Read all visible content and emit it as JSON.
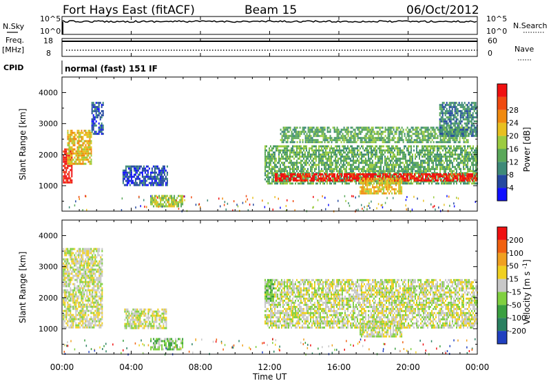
{
  "header": {
    "station": "Fort Hays East (fitACF)",
    "beam": "Beam 15",
    "date": "06/Oct/2012"
  },
  "noise_panel": {
    "left_label": "N.Sky",
    "right_label": "N.Search",
    "left_ticks": [
      "10^5",
      "10^0"
    ],
    "right_ticks": [
      "10^5",
      "10^0"
    ]
  },
  "freq_panel": {
    "left_label_1": "Freq.",
    "left_label_2": "[MHz]",
    "right_label": "Nave",
    "left_ticks": [
      "18",
      "8"
    ],
    "right_ticks": [
      "60",
      "0"
    ],
    "freq_value": 17,
    "nave_value": 11
  },
  "cpid_panel": {
    "label": "CPID",
    "text": "normal (fast) 151 IF"
  },
  "chart_data": [
    {
      "type": "heatmap",
      "quantity": "power",
      "ylabel": "Slant Range [km]",
      "ylim": [
        180,
        4500
      ],
      "yticks": [
        1000,
        2000,
        3000,
        4000
      ],
      "xlabel": "Time UT",
      "xlim": [
        0,
        24
      ],
      "xticks": [
        0,
        4,
        8,
        12,
        16,
        20,
        24
      ],
      "xtick_labels": [
        "00:00",
        "04:00",
        "08:00",
        "12:00",
        "16:00",
        "20:00",
        "00:00"
      ],
      "colorbar": {
        "label": "Power [dB]",
        "ticks": [
          4,
          8,
          12,
          16,
          20,
          24,
          28
        ],
        "colors": [
          "#1010ff",
          "#2448a0",
          "#3e8a78",
          "#5aa85a",
          "#9ccc40",
          "#e8c020",
          "#f08a10",
          "#f04a10",
          "#f01010"
        ]
      },
      "regions": [
        {
          "t0": 0.05,
          "t1": 0.6,
          "r0": 1100,
          "r1": 2200,
          "level": 8
        },
        {
          "t0": 0.3,
          "t1": 1.7,
          "r0": 1700,
          "r1": 2800,
          "level": 5
        },
        {
          "t0": 1.7,
          "t1": 2.4,
          "r0": 2700,
          "r1": 3700,
          "level": 1
        },
        {
          "t0": 3.5,
          "t1": 6.1,
          "r0": 1050,
          "r1": 1650,
          "level": 1
        },
        {
          "t0": 5.1,
          "t1": 7.0,
          "r0": 350,
          "r1": 700,
          "level": 4
        },
        {
          "t0": 11.7,
          "t1": 24,
          "r0": 1100,
          "r1": 2300,
          "level": 3
        },
        {
          "t0": 12.3,
          "t1": 24,
          "r0": 1150,
          "r1": 1400,
          "level": 8
        },
        {
          "t0": 12.6,
          "t1": 23.5,
          "r0": 2400,
          "r1": 2900,
          "level": 3
        },
        {
          "t0": 17.2,
          "t1": 19.6,
          "r0": 750,
          "r1": 1250,
          "level": 5
        },
        {
          "t0": 21.8,
          "t1": 24,
          "r0": 2600,
          "r1": 3700,
          "level": 2
        }
      ]
    },
    {
      "type": "heatmap",
      "quantity": "velocity",
      "ylabel": "Slant Range [km]",
      "ylim": [
        180,
        4500
      ],
      "yticks": [
        1000,
        2000,
        3000,
        4000
      ],
      "xlabel": "Time UT",
      "xlim": [
        0,
        24
      ],
      "xticks": [
        0,
        4,
        8,
        12,
        16,
        20,
        24
      ],
      "xtick_labels": [
        "00:00",
        "04:00",
        "08:00",
        "12:00",
        "16:00",
        "20:00",
        "00:00"
      ],
      "colorbar": {
        "label": "Velocity [m s^-1]",
        "ticks": [
          "200",
          "100",
          "50",
          "15",
          "-15",
          "-50",
          "-100",
          "-200"
        ],
        "colors": [
          "#2040c0",
          "#2a8060",
          "#3aa040",
          "#80d040",
          "#c8c8c8",
          "#f0d020",
          "#f0a020",
          "#f06010",
          "#f01010"
        ]
      },
      "regions": [
        {
          "t0": 0.05,
          "t1": 2.3,
          "r0": 1050,
          "r1": 3600,
          "level": 4
        },
        {
          "t0": 3.6,
          "t1": 6.0,
          "r0": 1050,
          "r1": 1650,
          "level": 4
        },
        {
          "t0": 5.1,
          "t1": 7.0,
          "r0": 350,
          "r1": 700,
          "level": 3
        },
        {
          "t0": 11.7,
          "t1": 24,
          "r0": 1050,
          "r1": 2600,
          "level": 4
        },
        {
          "t0": 11.7,
          "t1": 12.2,
          "r0": 1900,
          "r1": 2600,
          "level": 3
        },
        {
          "t0": 17.2,
          "t1": 19.6,
          "r0": 750,
          "r1": 1250,
          "level": 4
        }
      ]
    }
  ]
}
